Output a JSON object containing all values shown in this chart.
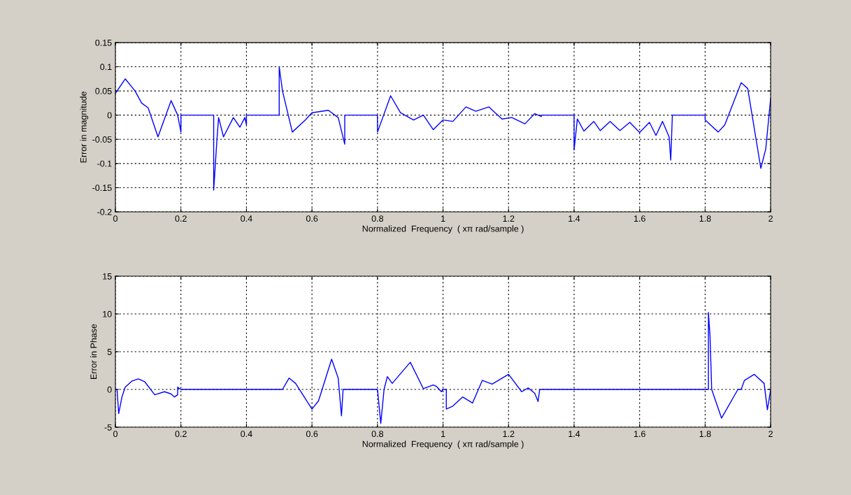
{
  "chart_data": [
    {
      "type": "line",
      "xlabel": "Normalized  Frequency  ( xπ rad/sample )",
      "ylabel": "Error in magnitude",
      "xlim": [
        0,
        2
      ],
      "xticks": [
        0,
        0.2,
        0.4,
        0.6,
        0.8,
        1,
        1.2,
        1.4,
        1.6,
        1.8,
        2
      ],
      "ylim": [
        -0.2,
        0.15
      ],
      "yticks": [
        -0.2,
        -0.15,
        -0.1,
        -0.05,
        0,
        0.05,
        0.1,
        0.15
      ],
      "grid": true,
      "legend": false,
      "series": [
        {
          "color": "#0000ff",
          "x": [
            0,
            0.03,
            0.06,
            0.08,
            0.1,
            0.13,
            0.17,
            0.19,
            0.2,
            0.2,
            0.3,
            0.3,
            0.31,
            0.315,
            0.33,
            0.36,
            0.38,
            0.395,
            0.4,
            0.4,
            0.5,
            0.5,
            0.51,
            0.54,
            0.58,
            0.6,
            0.65,
            0.68,
            0.7,
            0.7,
            0.8,
            0.8,
            0.84,
            0.87,
            0.91,
            0.94,
            0.97,
            1.0,
            1.03,
            1.07,
            1.1,
            1.14,
            1.18,
            1.21,
            1.25,
            1.28,
            1.3,
            1.3,
            1.4,
            1.4,
            1.41,
            1.43,
            1.46,
            1.48,
            1.51,
            1.54,
            1.57,
            1.6,
            1.63,
            1.65,
            1.67,
            1.69,
            1.695,
            1.7,
            1.8,
            1.8,
            1.84,
            1.86,
            1.91,
            1.93,
            1.97,
            1.985,
            2.0
          ],
          "values": [
            0.045,
            0.075,
            0.05,
            0.025,
            0.015,
            -0.045,
            0.03,
            0.0,
            -0.035,
            0,
            0,
            -0.155,
            -0.05,
            -0.005,
            -0.045,
            -0.005,
            -0.025,
            -0.005,
            -0.02,
            0,
            0,
            0.1,
            0.05,
            -0.035,
            -0.01,
            0.005,
            0.01,
            -0.005,
            -0.06,
            0,
            0,
            -0.035,
            0.04,
            0.005,
            -0.01,
            0,
            -0.03,
            -0.01,
            -0.013,
            0.017,
            0.008,
            0.017,
            -0.008,
            -0.005,
            -0.018,
            0.003,
            -0.003,
            0,
            0,
            -0.072,
            -0.008,
            -0.033,
            -0.013,
            -0.032,
            -0.013,
            -0.032,
            -0.015,
            -0.036,
            -0.015,
            -0.042,
            -0.013,
            -0.045,
            -0.093,
            0,
            0,
            -0.01,
            -0.035,
            -0.02,
            0.067,
            0.055,
            -0.11,
            -0.07,
            0.035
          ]
        }
      ]
    },
    {
      "type": "line",
      "xlabel": "Normalized  Frequency  ( xπ rad/sample )",
      "ylabel": "Error in Phase",
      "xlim": [
        0,
        2
      ],
      "xticks": [
        0,
        0.2,
        0.4,
        0.6,
        0.8,
        1,
        1.2,
        1.4,
        1.6,
        1.8,
        2
      ],
      "ylim": [
        -5,
        15
      ],
      "yticks": [
        -5,
        0,
        5,
        10,
        15
      ],
      "grid": true,
      "legend": false,
      "series": [
        {
          "color": "#0000ff",
          "x": [
            0,
            0.005,
            0.01,
            0.02,
            0.03,
            0.05,
            0.07,
            0.09,
            0.12,
            0.15,
            0.17,
            0.18,
            0.19,
            0.19,
            0.2,
            0.51,
            0.53,
            0.55,
            0.6,
            0.62,
            0.66,
            0.68,
            0.69,
            0.695,
            0.8,
            0.81,
            0.82,
            0.83,
            0.845,
            0.9,
            0.94,
            0.97,
            0.98,
            0.995,
            1.0,
            1.01,
            1.01,
            1.03,
            1.06,
            1.09,
            1.12,
            1.15,
            1.2,
            1.24,
            1.26,
            1.28,
            1.29,
            1.295,
            1.81,
            1.81,
            1.815,
            1.82,
            1.85,
            1.9,
            1.91,
            1.92,
            1.95,
            1.98,
            1.99,
            2.0
          ],
          "values": [
            0,
            0,
            -3.2,
            -1,
            0.3,
            1.1,
            1.4,
            1.0,
            -0.7,
            -0.3,
            -0.6,
            -1.0,
            -0.7,
            0.3,
            0,
            0,
            1.5,
            0.8,
            -2.6,
            -1.5,
            4.0,
            1.5,
            -3.5,
            0,
            0,
            -4.5,
            0,
            1.7,
            0.8,
            3.6,
            0.1,
            0.6,
            0.4,
            -0.3,
            0,
            0,
            -2.6,
            -2.2,
            -1.0,
            -1.8,
            1.2,
            0.7,
            2.0,
            -0.3,
            0.2,
            -0.5,
            -1.6,
            0,
            0,
            10.2,
            7,
            0,
            -3.8,
            0,
            0,
            1.2,
            2.0,
            0.8,
            -2.7,
            0
          ]
        }
      ]
    }
  ]
}
